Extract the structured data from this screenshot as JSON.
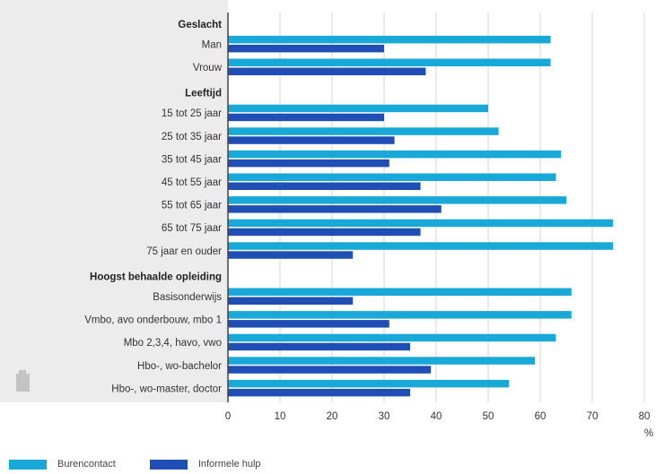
{
  "chart_data": {
    "type": "bar",
    "orientation": "horizontal",
    "x_unit": "%",
    "xlim": [
      0,
      80
    ],
    "xticks": [
      0,
      10,
      20,
      30,
      40,
      50,
      60,
      70,
      80
    ],
    "grid": true,
    "legend_position": "bottom-left",
    "rows": [
      {
        "label": "Geslacht",
        "heading": true
      },
      {
        "label": "Man",
        "values": [
          62,
          30
        ]
      },
      {
        "label": "Vrouw",
        "values": [
          62,
          38
        ]
      },
      {
        "label": "Leeftijd",
        "heading": true
      },
      {
        "label": "15 tot 25 jaar",
        "values": [
          50,
          30
        ]
      },
      {
        "label": "25 tot 35 jaar",
        "values": [
          52,
          32
        ]
      },
      {
        "label": "35 tot 45 jaar",
        "values": [
          64,
          31
        ]
      },
      {
        "label": "45 tot 55 jaar",
        "values": [
          63,
          37
        ]
      },
      {
        "label": "55 tot 65 jaar",
        "values": [
          65,
          41
        ]
      },
      {
        "label": "65 tot 75 jaar",
        "values": [
          74,
          37
        ]
      },
      {
        "label": "75 jaar en ouder",
        "values": [
          74,
          24
        ]
      },
      {
        "label": "Hoogst behaalde opleiding",
        "heading": true
      },
      {
        "label": "Basisonderwijs",
        "values": [
          66,
          24
        ]
      },
      {
        "label": "Vmbo, avo onderbouw, mbo 1",
        "values": [
          66,
          31
        ]
      },
      {
        "label": "Mbo 2,3,4, havo, vwo",
        "values": [
          63,
          35
        ]
      },
      {
        "label": "Hbo-, wo-bachelor",
        "values": [
          59,
          39
        ]
      },
      {
        "label": "Hbo-, wo-master, doctor",
        "values": [
          54,
          35
        ]
      }
    ],
    "series": [
      {
        "name": "Burencontact",
        "color": "#19a9d9"
      },
      {
        "name": "Informele hulp",
        "color": "#1f4fb5"
      }
    ]
  },
  "colors": {
    "label_panel": "#ececec",
    "gridline": "#d6d6d6",
    "axis": "#444444"
  },
  "icons": [
    "document-icon"
  ]
}
